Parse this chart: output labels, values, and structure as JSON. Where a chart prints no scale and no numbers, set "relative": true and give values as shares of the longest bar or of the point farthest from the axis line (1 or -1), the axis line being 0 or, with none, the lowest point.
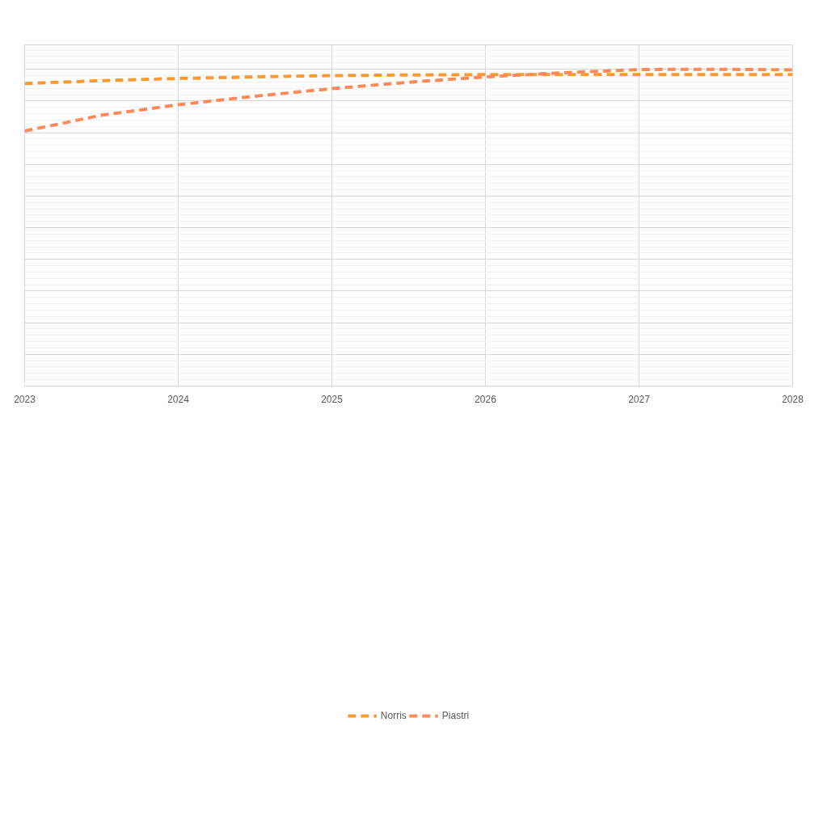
{
  "chart_data": {
    "type": "line",
    "relative": true,
    "line_style": "dashed",
    "grid": true,
    "legend": "bottom",
    "xlim": [
      2023,
      2028
    ],
    "xticks": [
      2023,
      2024,
      2025,
      2026,
      2027,
      2028
    ],
    "series": [
      {
        "name": "Norris",
        "color": "#ff9933",
        "x": [
          2023,
          2023.5,
          2024,
          2024.5,
          2025,
          2025.5,
          2026,
          2026.5,
          2027,
          2027.5,
          2028
        ],
        "values": [
          0.955,
          0.964,
          0.971,
          0.976,
          0.98,
          0.982,
          0.983,
          0.983,
          0.983,
          0.983,
          0.983
        ]
      },
      {
        "name": "Piastri",
        "color": "#ff8a5c",
        "x": [
          2023,
          2023.5,
          2024,
          2024.5,
          2025,
          2025.5,
          2026,
          2026.5,
          2027,
          2027.25,
          2027.5,
          2028
        ],
        "values": [
          0.805,
          0.855,
          0.888,
          0.915,
          0.939,
          0.959,
          0.976,
          0.989,
          0.999,
          1,
          1,
          0.998
        ]
      }
    ]
  }
}
